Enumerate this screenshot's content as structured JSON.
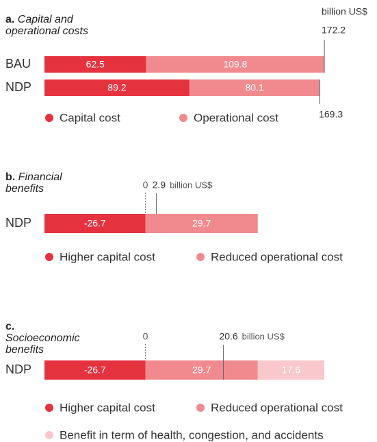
{
  "chart_data": [
    {
      "type": "bar",
      "orientation": "horizontal",
      "stacked": true,
      "label": "a.",
      "title": "Capital and operational costs",
      "unit": "billion US$",
      "categories": [
        "BAU",
        "NDP"
      ],
      "series": [
        {
          "name": "Capital cost",
          "color": "#e5323f",
          "values": [
            62.5,
            89.2
          ]
        },
        {
          "name": "Operational cost",
          "color": "#f08a8e",
          "values": [
            109.8,
            80.1
          ]
        }
      ],
      "totals": [
        172.2,
        169.3
      ],
      "xlim": [
        0,
        172.2
      ]
    },
    {
      "type": "bar",
      "orientation": "horizontal",
      "stacked": true,
      "label": "b.",
      "title": "Financial benefits",
      "unit": "billion US$",
      "categories": [
        "NDP"
      ],
      "series": [
        {
          "name": "Higher capital cost",
          "color": "#e5323f",
          "values": [
            -26.7
          ]
        },
        {
          "name": "Reduced operational cost",
          "color": "#f08a8e",
          "values": [
            29.7
          ]
        }
      ],
      "net": [
        2.9
      ],
      "xlim": [
        -26.7,
        47.3
      ],
      "xticks": [
        0
      ]
    },
    {
      "type": "bar",
      "orientation": "horizontal",
      "stacked": true,
      "label": "c.",
      "title": "Socioeconomic benefits",
      "unit": "billion US$",
      "categories": [
        "NDP"
      ],
      "series": [
        {
          "name": "Higher capital cost",
          "color": "#e5323f",
          "values": [
            -26.7
          ]
        },
        {
          "name": "Reduced operational cost",
          "color": "#f08a8e",
          "values": [
            29.7
          ]
        },
        {
          "name": "Benefit in term of health, congestion, and accidents",
          "color": "#f9c8cc",
          "values": [
            17.6
          ]
        }
      ],
      "net": [
        20.6
      ],
      "xlim": [
        -26.7,
        47.3
      ],
      "xticks": [
        0
      ]
    }
  ]
}
